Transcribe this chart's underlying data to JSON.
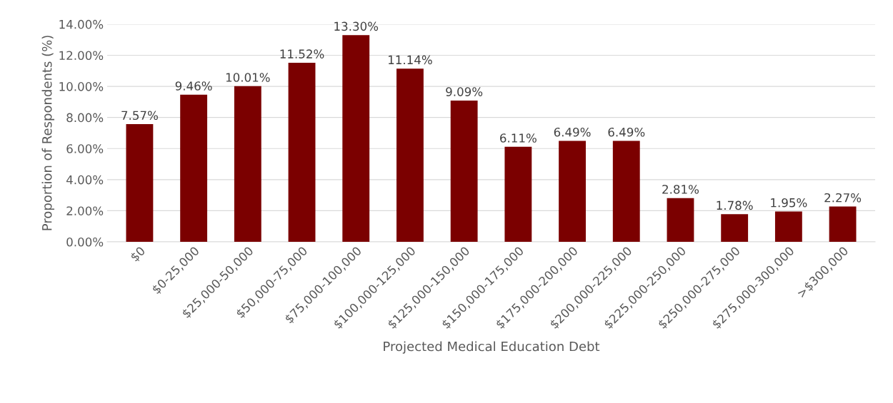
{
  "chart_data": {
    "type": "bar",
    "xlabel": "Projected Medical Education Debt",
    "ylabel": "Proportion of Respondents (%)",
    "categories": [
      "$0",
      "$0-25,000",
      "$25,000-50,000",
      "$50,000-75,000",
      "$75,000-100,000",
      "$100,000-125,000",
      "$125,000-150,000",
      "$150,000-175,000",
      "$175,000-200,000",
      "$200,000-225,000",
      "$225,000-250,000",
      "$250,000-275,000",
      "$275,000-300,000",
      ">$300,000"
    ],
    "values": [
      7.57,
      9.46,
      10.01,
      11.52,
      13.3,
      11.14,
      9.09,
      6.11,
      6.49,
      6.49,
      2.81,
      1.78,
      1.95,
      2.27
    ],
    "value_labels": [
      "7.57%",
      "9.46%",
      "10.01%",
      "11.52%",
      "13.30%",
      "11.14%",
      "9.09%",
      "6.11%",
      "6.49%",
      "6.49%",
      "2.81%",
      "1.78%",
      "1.95%",
      "2.27%"
    ],
    "color": "#7b0000",
    "ylim": [
      0,
      14
    ],
    "yticks": [
      {
        "value": 0,
        "label": "0.00%"
      },
      {
        "value": 2,
        "label": "2.00%"
      },
      {
        "value": 4,
        "label": "4.00%"
      },
      {
        "value": 6,
        "label": "6.00%"
      },
      {
        "value": 8,
        "label": "8.00%"
      },
      {
        "value": 10,
        "label": "10.00%"
      },
      {
        "value": 12,
        "label": "12.00%"
      },
      {
        "value": 14,
        "label": "14.00%"
      }
    ],
    "grid": "y",
    "legend": false
  }
}
